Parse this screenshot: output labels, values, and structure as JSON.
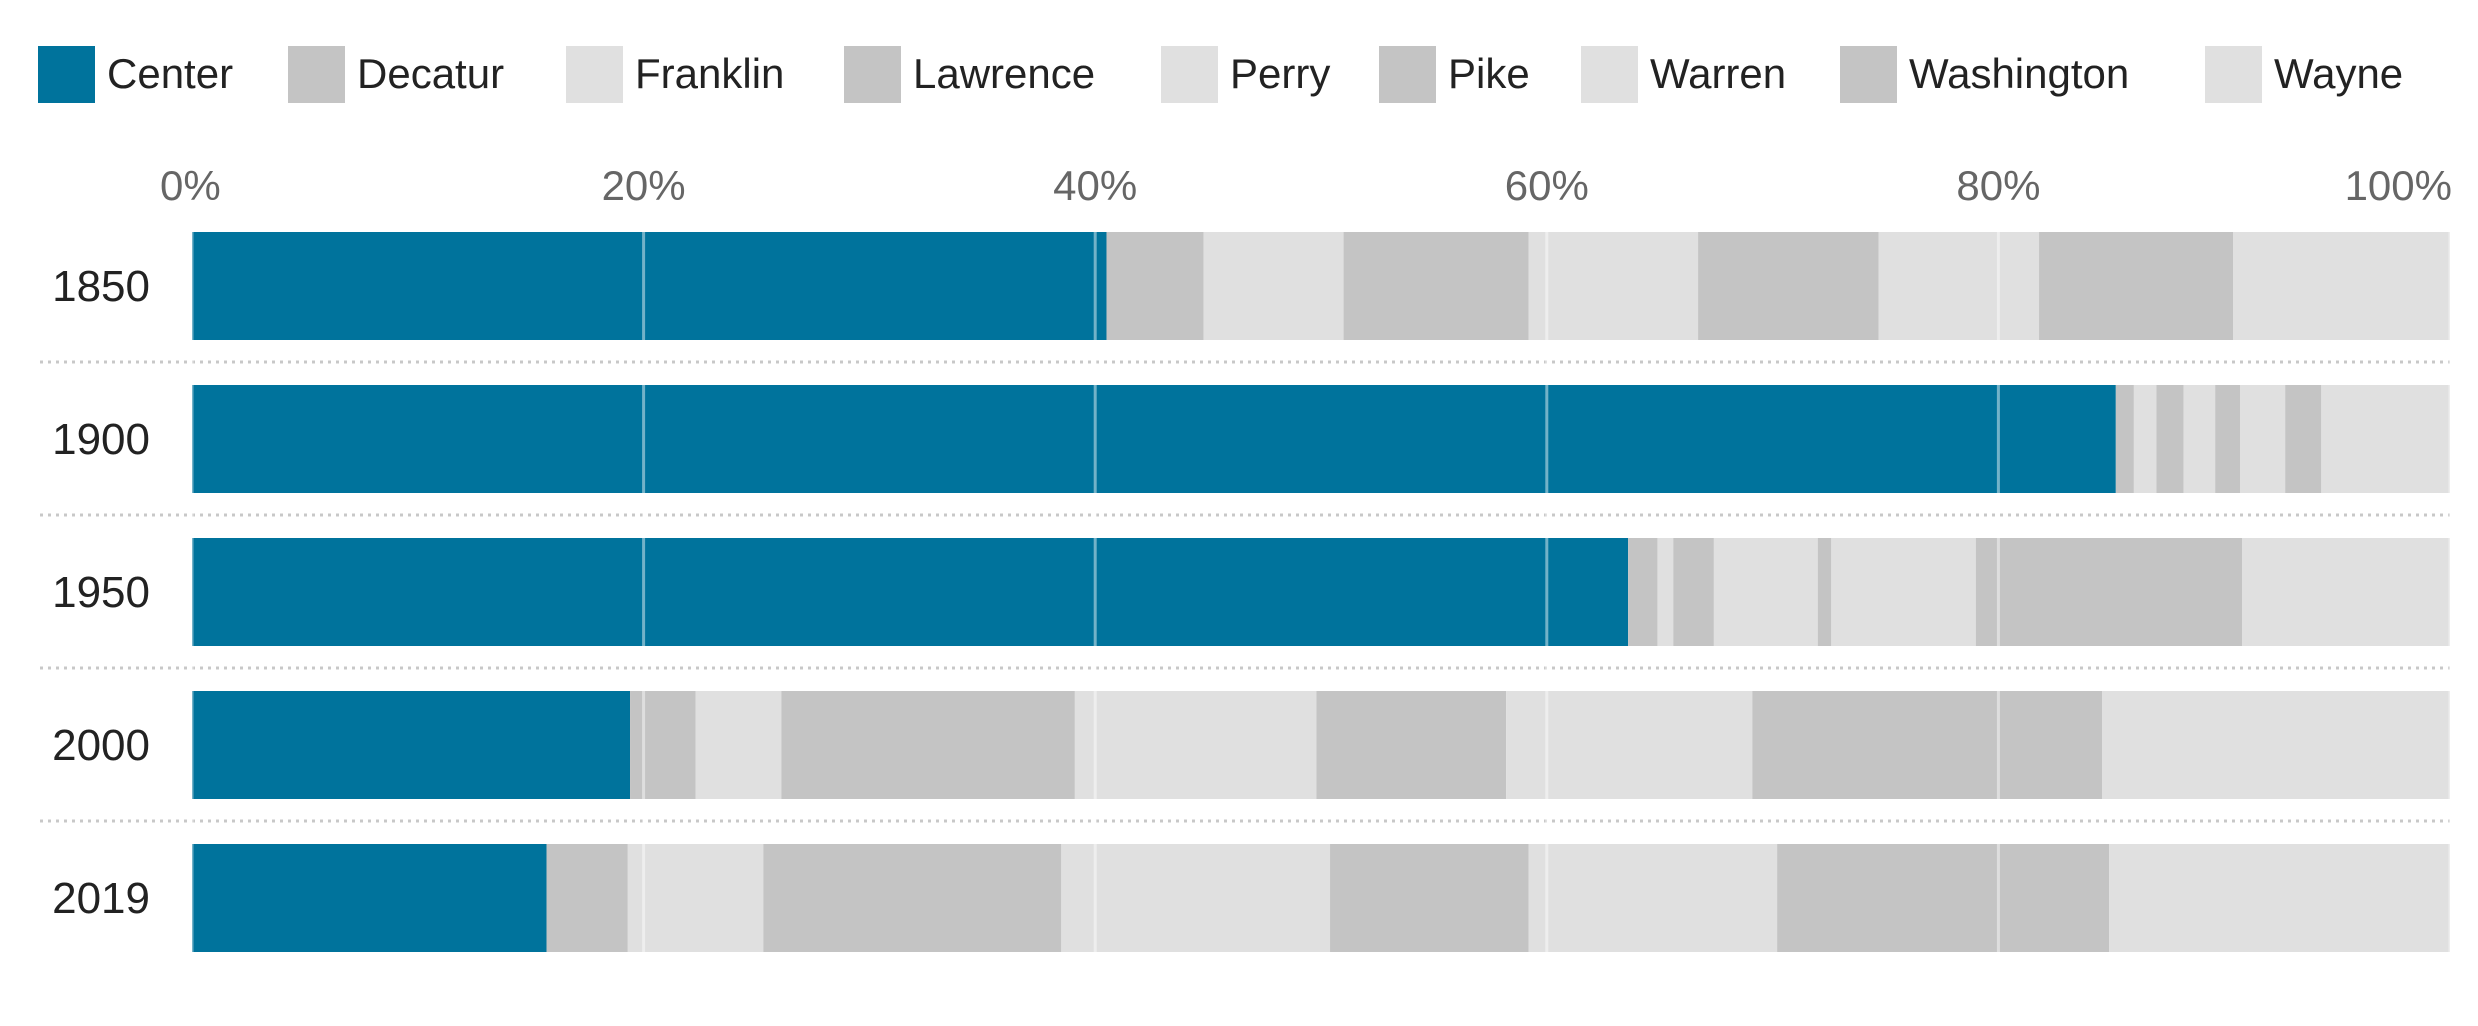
{
  "chart_data": {
    "type": "bar",
    "orientation": "horizontal",
    "stacked": true,
    "normalized": true,
    "categories": [
      "1850",
      "1900",
      "1950",
      "2000",
      "2019"
    ],
    "x_ticks": [
      "0%",
      "20%",
      "40%",
      "60%",
      "80%",
      "100%"
    ],
    "xlim": [
      0,
      100
    ],
    "grid": true,
    "legend_position": "top",
    "series": [
      {
        "name": "Center",
        "color": "#00739c",
        "values": [
          40.5,
          85.2,
          63.6,
          19.4,
          15.7
        ]
      },
      {
        "name": "Decatur",
        "color": "#c4c4c4",
        "values": [
          4.3,
          0.8,
          1.3,
          2.9,
          3.6
        ]
      },
      {
        "name": "Franklin",
        "color": "#e0e0e0",
        "values": [
          6.2,
          1.0,
          0.7,
          3.8,
          6.0
        ]
      },
      {
        "name": "Lawrence",
        "color": "#c4c4c4",
        "values": [
          8.2,
          1.2,
          1.8,
          13.0,
          13.2
        ]
      },
      {
        "name": "Perry",
        "color": "#e0e0e0",
        "values": [
          7.5,
          1.4,
          4.6,
          10.7,
          11.9
        ]
      },
      {
        "name": "Pike",
        "color": "#c4c4c4",
        "values": [
          8.0,
          1.1,
          0.6,
          8.4,
          8.8
        ]
      },
      {
        "name": "Warren",
        "color": "#e0e0e0",
        "values": [
          7.1,
          2.0,
          6.4,
          10.9,
          11.0
        ]
      },
      {
        "name": "Washington",
        "color": "#c4c4c4",
        "values": [
          8.6,
          1.6,
          11.8,
          15.5,
          14.7
        ]
      },
      {
        "name": "Wayne",
        "color": "#e0e0e0",
        "values": [
          9.6,
          5.7,
          9.2,
          15.4,
          15.1
        ]
      }
    ]
  }
}
